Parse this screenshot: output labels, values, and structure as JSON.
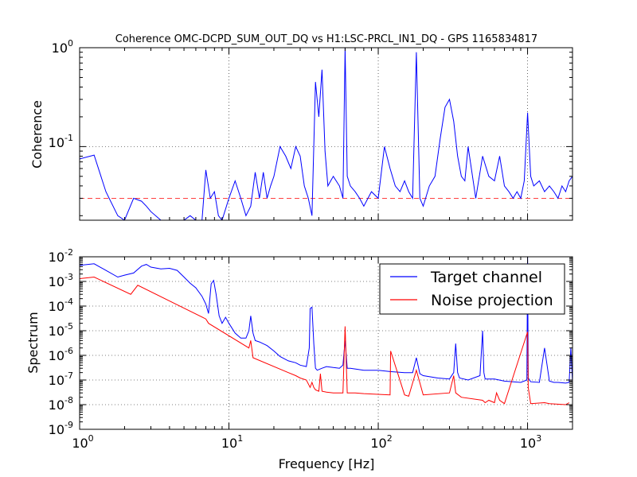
{
  "chart_data": [
    {
      "type": "line",
      "title": "Coherence OMC-DCPD_SUM_OUT_DQ vs H1:LSC-PRCL_IN1_DQ - GPS 1165834817",
      "xlabel": "",
      "ylabel": "Coherence",
      "xscale": "log",
      "yscale": "log",
      "xlim": [
        1,
        2000
      ],
      "ylim": [
        0.018,
        1
      ],
      "grid": true,
      "y_tick_labels": [
        "10^0",
        "10^-1"
      ],
      "threshold": {
        "y": 0.03,
        "color": "#ff0000",
        "style": "dashed"
      },
      "series": [
        {
          "color": "#0000ff",
          "x": [
            1.0,
            1.25,
            1.5,
            1.8,
            2.0,
            2.3,
            2.6,
            2.8,
            3.0,
            3.5,
            4.0,
            5.0,
            5.5,
            6.0,
            6.6,
            7.0,
            7.5,
            8.0,
            8.5,
            9.0,
            10.0,
            11.0,
            12.0,
            13.0,
            14.0,
            15.0,
            16.0,
            17.0,
            18.0,
            19.0,
            20.0,
            22.0,
            24.0,
            26.0,
            28.0,
            30.0,
            32.0,
            34.0,
            36.0,
            38.0,
            40.0,
            42.0,
            44.0,
            46.0,
            48.0,
            50.0,
            55.0,
            58.0,
            60.0,
            62.0,
            65.0,
            70.0,
            75.0,
            80.0,
            90.0,
            100.0,
            110.0,
            120.0,
            130.0,
            140.0,
            150.0,
            160.0,
            170.0,
            180.0,
            190.0,
            200.0,
            220.0,
            240.0,
            260.0,
            280.0,
            300.0,
            320.0,
            340.0,
            360.0,
            380.0,
            400.0,
            450.0,
            500.0,
            550.0,
            600.0,
            650.0,
            700.0,
            750.0,
            800.0,
            850.0,
            900.0,
            950.0,
            1000.0,
            1050.0,
            1100.0,
            1200.0,
            1300.0,
            1400.0,
            1500.0,
            1600.0,
            1700.0,
            1800.0,
            1900.0,
            2000.0
          ],
          "values": [
            0.075,
            0.082,
            0.035,
            0.02,
            0.018,
            0.03,
            0.028,
            0.025,
            0.022,
            0.018,
            0.018,
            0.018,
            0.02,
            0.018,
            0.018,
            0.058,
            0.03,
            0.035,
            0.02,
            0.018,
            0.03,
            0.045,
            0.03,
            0.02,
            0.025,
            0.055,
            0.03,
            0.055,
            0.03,
            0.04,
            0.05,
            0.1,
            0.08,
            0.06,
            0.1,
            0.08,
            0.04,
            0.03,
            0.02,
            0.45,
            0.2,
            0.6,
            0.09,
            0.04,
            0.045,
            0.05,
            0.04,
            0.03,
            1.0,
            0.05,
            0.04,
            0.035,
            0.03,
            0.025,
            0.035,
            0.03,
            0.1,
            0.06,
            0.04,
            0.035,
            0.045,
            0.035,
            0.03,
            0.9,
            0.03,
            0.025,
            0.04,
            0.05,
            0.12,
            0.25,
            0.3,
            0.18,
            0.08,
            0.05,
            0.045,
            0.1,
            0.03,
            0.08,
            0.05,
            0.045,
            0.08,
            0.04,
            0.035,
            0.03,
            0.035,
            0.03,
            0.045,
            0.22,
            0.05,
            0.04,
            0.045,
            0.035,
            0.04,
            0.035,
            0.03,
            0.04,
            0.035,
            0.045,
            0.05
          ]
        }
      ]
    },
    {
      "type": "line",
      "title": "",
      "xlabel": "Frequency [Hz]",
      "ylabel": "Spectrum",
      "xscale": "log",
      "yscale": "log",
      "xlim": [
        1,
        2000
      ],
      "ylim": [
        1e-09,
        0.01
      ],
      "grid": true,
      "x_tick_labels": [
        "10^0",
        "10^1",
        "10^2",
        "10^3"
      ],
      "y_tick_labels": [
        "10^-2",
        "10^-3",
        "10^-4",
        "10^-5",
        "10^-6",
        "10^-7",
        "10^-8",
        "10^-9"
      ],
      "legend": {
        "position": "top-right",
        "entries": [
          "Target channel",
          "Noise projection"
        ]
      },
      "series": [
        {
          "name": "Target channel",
          "color": "#0000ff",
          "x": [
            1.0,
            1.25,
            1.5,
            1.8,
            2.0,
            2.3,
            2.6,
            2.8,
            3.0,
            3.5,
            4.0,
            4.5,
            5.0,
            5.5,
            6.0,
            6.6,
            7.0,
            7.3,
            7.6,
            7.9,
            8.2,
            8.6,
            9.0,
            9.5,
            10.0,
            11.0,
            12.0,
            13.0,
            13.6,
            14.0,
            14.5,
            15.0,
            16.0,
            18.0,
            20.0,
            22.0,
            25.0,
            28.0,
            30.0,
            33.0,
            34.5,
            35.0,
            36.0,
            37.0,
            38.0,
            39.0,
            42.0,
            45.0,
            50.0,
            55.0,
            58.0,
            60.0,
            62.0,
            65.0,
            70.0,
            80.0,
            100.0,
            120.0,
            150.0,
            170.0,
            180.0,
            190.0,
            200.0,
            250.0,
            300.0,
            320.0,
            330.0,
            340.0,
            350.0,
            400.0,
            480.0,
            500.0,
            510.0,
            520.0,
            600.0,
            700.0,
            800.0,
            900.0,
            990.0,
            1000.0,
            1010.0,
            1050.0,
            1200.0,
            1300.0,
            1400.0,
            1500.0,
            1600.0,
            1800.0,
            1900.0,
            1950.0,
            2000.0
          ],
          "values": [
            0.0045,
            0.0052,
            0.0028,
            0.0015,
            0.0018,
            0.0022,
            0.0042,
            0.0049,
            0.0038,
            0.0032,
            0.0034,
            0.0028,
            0.0015,
            0.00085,
            0.00055,
            0.00025,
            0.00012,
            5e-05,
            0.0008,
            0.0011,
            0.0003,
            4e-05,
            2e-05,
            3.5e-05,
            2e-05,
            8e-06,
            5e-06,
            5e-06,
            1e-05,
            4e-05,
            8e-06,
            4e-06,
            3.5e-06,
            2.5e-06,
            1.5e-06,
            9e-07,
            6e-07,
            5e-07,
            4e-07,
            3.5e-07,
            2e-06,
            8e-05,
            9e-05,
            3e-06,
            3e-07,
            2.5e-07,
            3e-07,
            3.5e-07,
            3.2e-07,
            3e-07,
            4e-07,
            4e-06,
            3e-07,
            3e-07,
            2.8e-07,
            2.5e-07,
            2.5e-07,
            2.2e-07,
            2e-07,
            2e-07,
            8e-07,
            1.8e-07,
            1.5e-07,
            1.2e-07,
            1.1e-07,
            2e-07,
            3e-06,
            2e-07,
            1.2e-07,
            1e-07,
            1.5e-07,
            1e-05,
            2e-07,
            1.1e-07,
            1.1e-07,
            9e-08,
            8.5e-08,
            8e-08,
            1e-07,
            0.01,
            1.2e-07,
            8.5e-08,
            8e-08,
            2e-06,
            9e-08,
            8e-08,
            8e-08,
            7.5e-08,
            8e-08,
            2e-06,
            8e-08
          ]
        },
        {
          "name": "Noise projection",
          "color": "#ff0000",
          "x": [
            1.0,
            1.25,
            2.2,
            2.45,
            7.0,
            7.3,
            13.6,
            14.0,
            14.5,
            25.0,
            28.0,
            30.0,
            33.0,
            35.0,
            36.0,
            37.0,
            38.0,
            40.0,
            41.0,
            42.0,
            45.0,
            50.0,
            55.0,
            58.0,
            60.0,
            62.0,
            70.0,
            80.0,
            120.0,
            121.0,
            150.0,
            160.0,
            180.0,
            200.0,
            300.0,
            320.0,
            330.0,
            360.0,
            500.0,
            520.0,
            550.0,
            600.0,
            620.0,
            650.0,
            700.0,
            1000.0,
            1010.0,
            1050.0,
            1300.0,
            1400.0,
            1800.0,
            1900.0
          ],
          "values": [
            0.0013,
            0.0015,
            0.0003,
            0.0007,
            3e-05,
            2e-05,
            2e-06,
            4e-06,
            8e-07,
            2e-07,
            1.5e-07,
            1.2e-07,
            1e-07,
            5e-08,
            8e-08,
            5e-08,
            4e-08,
            3.5e-08,
            1.8e-07,
            3.5e-08,
            3.2e-08,
            3e-08,
            3e-08,
            3e-08,
            1.5e-05,
            3e-08,
            3e-08,
            2.8e-08,
            2.5e-08,
            1.5e-06,
            2.5e-08,
            2.2e-08,
            2.5e-07,
            2.5e-08,
            3e-08,
            1.5e-07,
            3e-08,
            2e-08,
            1.5e-08,
            1.2e-08,
            1.5e-08,
            1.2e-08,
            3e-08,
            1.5e-08,
            1.1e-08,
            9e-06,
            5e-08,
            1.1e-08,
            1.2e-08,
            1.1e-08,
            1e-08,
            1.2e-08
          ]
        }
      ]
    }
  ]
}
